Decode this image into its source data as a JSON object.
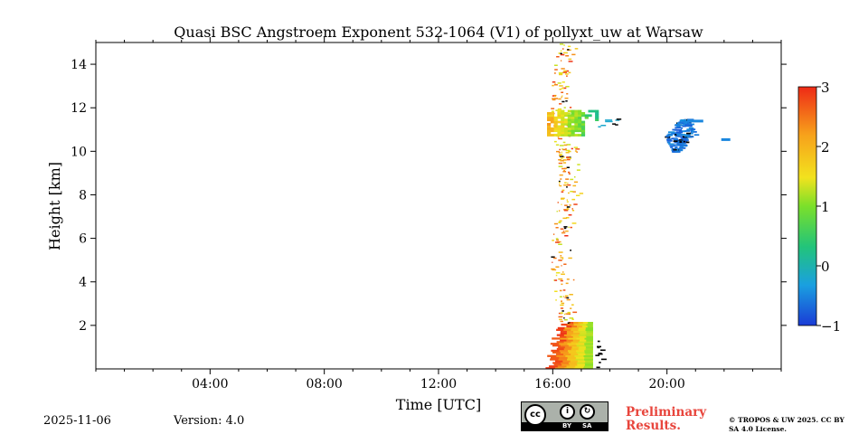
{
  "chart_data": {
    "type": "heatmap",
    "title": "Quasi BSC Angstroem Exponent 532-1064 (V1) of pollyxt_uw at Warsaw",
    "xlabel": "Time [UTC]",
    "ylabel": "Height [km]",
    "xlim_hours": [
      0,
      24
    ],
    "ylim_km": [
      0,
      15
    ],
    "x_ticks": [
      {
        "value": 4,
        "label": "04:00"
      },
      {
        "value": 8,
        "label": "08:00"
      },
      {
        "value": 12,
        "label": "12:00"
      },
      {
        "value": 16,
        "label": "16:00"
      },
      {
        "value": 20,
        "label": "20:00"
      }
    ],
    "y_ticks": [
      {
        "value": 2,
        "label": "2"
      },
      {
        "value": 4,
        "label": "4"
      },
      {
        "value": 6,
        "label": "6"
      },
      {
        "value": 8,
        "label": "8"
      },
      {
        "value": 10,
        "label": "10"
      },
      {
        "value": 12,
        "label": "12"
      },
      {
        "value": 14,
        "label": "14"
      }
    ],
    "colorbar": {
      "range": [
        -1,
        3
      ],
      "ticks": [
        {
          "value": 3,
          "label": "3"
        },
        {
          "value": 2,
          "label": "2"
        },
        {
          "value": 1,
          "label": "1"
        },
        {
          "value": 0,
          "label": "0"
        },
        {
          "value": -1,
          "label": "−1"
        }
      ],
      "colormap": [
        "#1a3bd6",
        "#1aa0e0",
        "#22c47a",
        "#7be02a",
        "#f2e21e",
        "#f7a11b",
        "#ee2a16"
      ]
    },
    "regions": [
      {
        "name": "boundary-layer-aerosol",
        "t0": 15.75,
        "t1": 17.4,
        "h0": 0.0,
        "h1": 2.1,
        "value_start": 2.8,
        "value_end": 1.2
      },
      {
        "name": "aerosol-column-scatter",
        "t0": 15.8,
        "t1": 16.9,
        "h0": 2.1,
        "h1": 15.0,
        "value_start": 2.2,
        "value_end": 1.6
      },
      {
        "name": "cirrus-layer-a",
        "t0": 15.8,
        "t1": 17.6,
        "h0": 10.7,
        "h1": 11.8,
        "value_start": 2.1,
        "value_end": 0.2
      },
      {
        "name": "cirrus-layer-b",
        "t0": 19.9,
        "t1": 21.3,
        "h0": 10.0,
        "h1": 11.5,
        "value_start": -0.6,
        "value_end": -0.6
      }
    ]
  },
  "footer": {
    "date": "2025-11-06",
    "version": "Version: 4.0",
    "preliminary": "Preliminary Results.",
    "copyright": "© TROPOS & UW 2025. CC BY SA 4.0 License.",
    "license_cc": "cc",
    "license_by": "BY",
    "license_sa": "SA"
  }
}
